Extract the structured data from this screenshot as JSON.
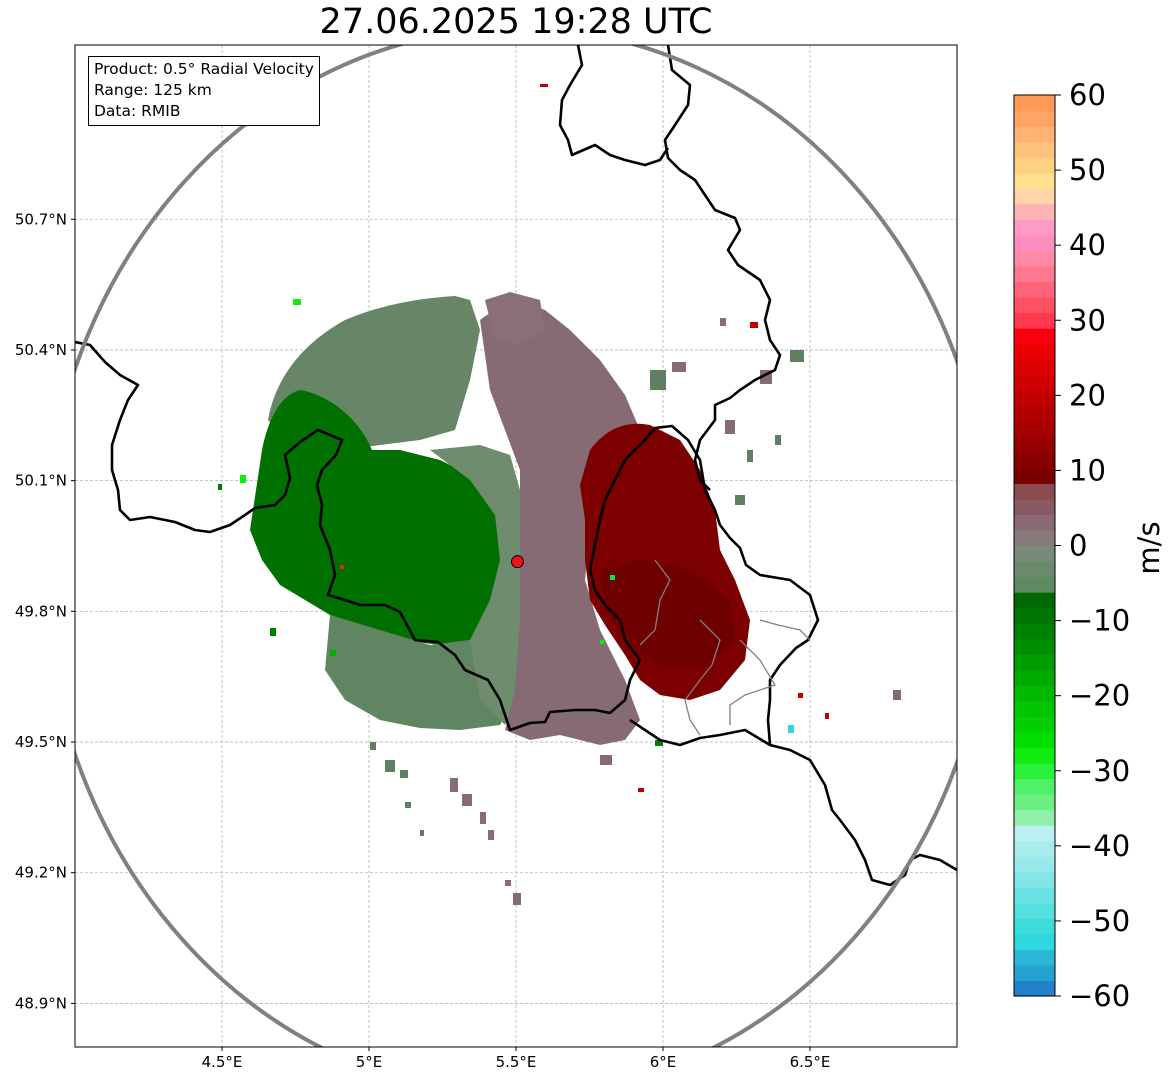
{
  "title": "27.06.2025 19:28 UTC",
  "info": {
    "product": "Product: 0.5° Radial Velocity",
    "range": "Range: 125 km",
    "data": "Data: RMIB"
  },
  "map": {
    "lon_range": [
      4.0,
      7.0
    ],
    "lat_range": [
      48.8,
      51.1
    ],
    "radar_site": {
      "lon": 5.505,
      "lat": 49.914,
      "marker_color": "#e8141c"
    },
    "range_ring_color": "#808080",
    "border_color": "#000000",
    "admin_border_color": "#808080",
    "grid": true
  },
  "axes": {
    "x_ticks": [
      {
        "value": 4.5,
        "label": "4.5°E"
      },
      {
        "value": 5.0,
        "label": "5°E"
      },
      {
        "value": 5.5,
        "label": "5.5°E"
      },
      {
        "value": 6.0,
        "label": "6°E"
      },
      {
        "value": 6.5,
        "label": "6.5°E"
      }
    ],
    "y_ticks": [
      {
        "value": 50.7,
        "label": "50.7°N"
      },
      {
        "value": 50.4,
        "label": "50.4°N"
      },
      {
        "value": 50.1,
        "label": "50.1°N"
      },
      {
        "value": 49.8,
        "label": "49.8°N"
      },
      {
        "value": 49.5,
        "label": "49.5°N"
      },
      {
        "value": 49.2,
        "label": "49.2°N"
      },
      {
        "value": 48.9,
        "label": "48.9°N"
      }
    ]
  },
  "colorbar": {
    "unit": "m/s",
    "min": -60,
    "max": 60,
    "ticks": [
      {
        "value": 60,
        "label": "60"
      },
      {
        "value": 50,
        "label": "50"
      },
      {
        "value": 40,
        "label": "40"
      },
      {
        "value": 30,
        "label": "30"
      },
      {
        "value": 20,
        "label": "20"
      },
      {
        "value": 10,
        "label": "10"
      },
      {
        "value": 0,
        "label": "0"
      },
      {
        "value": -10,
        "label": "−10"
      },
      {
        "value": -20,
        "label": "−20"
      },
      {
        "value": -30,
        "label": "−30"
      },
      {
        "value": -40,
        "label": "−40"
      },
      {
        "value": -50,
        "label": "−50"
      },
      {
        "value": -60,
        "label": "−60"
      }
    ],
    "colors": [
      "#2280c8",
      "#26a2d0",
      "#2ab8d6",
      "#2ed6de",
      "#3cdcdc",
      "#54e0e0",
      "#6ae2e4",
      "#82e6e6",
      "#98eaea",
      "#aaecec",
      "#bcf0f0",
      "#90f0a8",
      "#6cf084",
      "#50f068",
      "#2af038",
      "#10ec10",
      "#00e000",
      "#00d000",
      "#00c400",
      "#00b800",
      "#00aa00",
      "#009c00",
      "#008e00",
      "#008000",
      "#007400",
      "#006800",
      "#5e8a60",
      "#6a8a6c",
      "#788a78",
      "#867a7a",
      "#8a6a74",
      "#8a5a64",
      "#8a4a4e",
      "#7a0000",
      "#880000",
      "#960000",
      "#a40000",
      "#b20000",
      "#c00000",
      "#ce0000",
      "#dc0000",
      "#ea0000",
      "#f80010",
      "#ff3a4e",
      "#ff5064",
      "#ff6478",
      "#ff7890",
      "#ff8aa8",
      "#ff8ec0",
      "#ff9ac8",
      "#ffb4b4",
      "#ffd4a6",
      "#ffe08e",
      "#ffd080",
      "#ffc27c",
      "#ffb274",
      "#ffa462",
      "#ff9a56"
    ]
  },
  "legend_colors": {
    "green": "#007000",
    "gray_green": "#5f8060",
    "mauve": "#866a74",
    "dark_red": "#7c0000"
  }
}
